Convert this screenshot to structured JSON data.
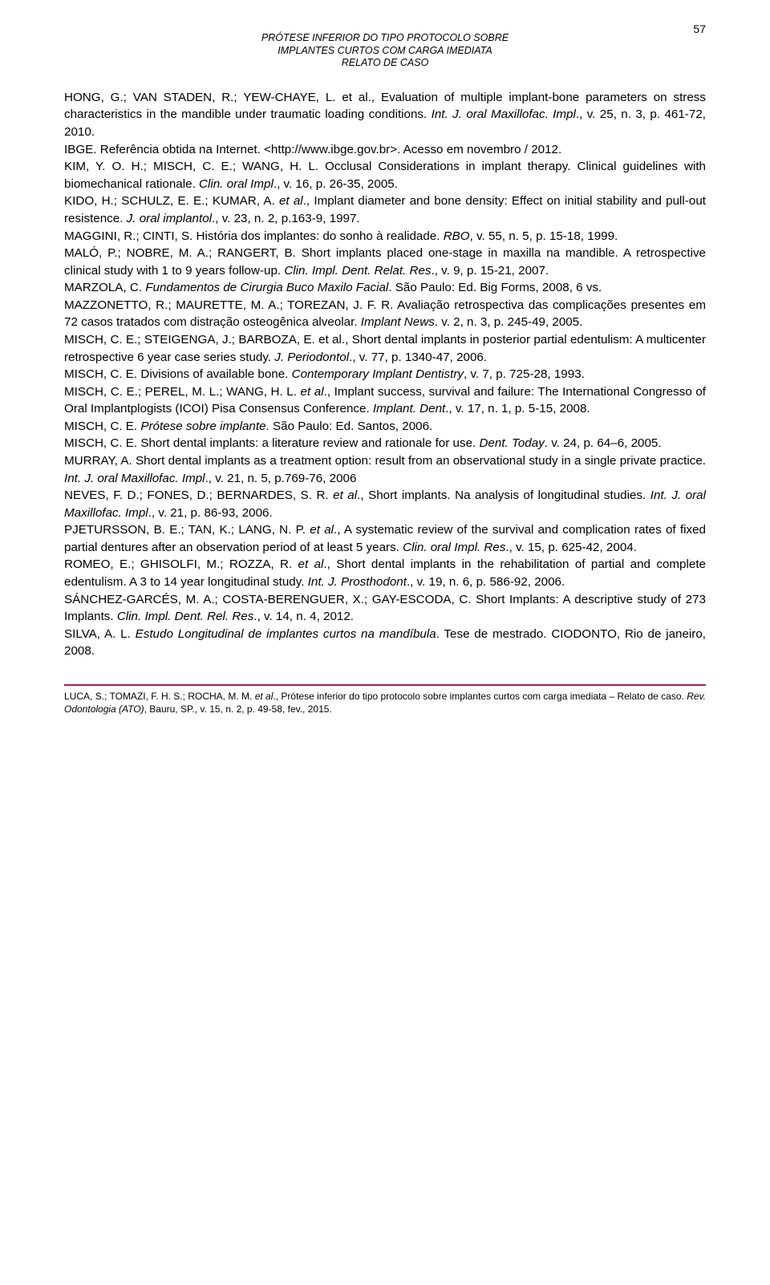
{
  "page_number": "57",
  "header": {
    "line1": "PRÓTESE INFERIOR DO TIPO PROTOCOLO SOBRE",
    "line2": "IMPLANTES CURTOS COM CARGA IMEDIATA",
    "line3": "RELATO DE CASO"
  },
  "refs": {
    "r1a": "HONG, G.; VAN STADEN, R.; YEW-CHAYE, L. et al., Evaluation of multiple implant-bone parameters on stress characteristics in the mandible under traumatic loading conditions. ",
    "r1i": "Int. J. oral Maxillofac. Impl",
    "r1b": "., v. 25, n. 3, p. 461-72, 2010.",
    "r2a": "IBGE. Referência obtida na Internet. <http://www.ibge.gov.br>. Acesso em novembro / 2012.",
    "r3a": "KIM, Y. O. H.; MISCH, C. E.; WANG, H. L. Occlusal Considerations in implant therapy. Clinical guidelines with biomechanical rationale. ",
    "r3i": "Clin. oral Impl",
    "r3b": "., v. 16, p. 26-35, 2005.",
    "r4a": "KIDO, H.; SCHULZ, E. E.; KUMAR, A. ",
    "r4i1": "et al",
    "r4b": "., Implant diameter and bone density: Effect on initial stability and pull-out resistence. ",
    "r4i2": "J. oral implantol",
    "r4c": "., v. 23, n. 2, p.163-9, 1997.",
    "r5a": "MAGGINI, R.; CINTI, S. História dos implantes: do sonho à realidade. ",
    "r5i": "RBO",
    "r5b": ", v. 55, n. 5, p. 15-18, 1999.",
    "r6a": "MALÓ, P.; NOBRE, M. A.; RANGERT, B. Short implants placed one-stage in maxilla na mandible. A retrospective clinical study with 1 to 9 years follow-up. ",
    "r6i": "Clin. Impl. Dent. Relat. Res",
    "r6b": "., v. 9, p. 15-21, 2007.",
    "r7a": "MARZOLA, C. ",
    "r7i": "Fundamentos de Cirurgia Buco Maxilo Facial",
    "r7b": ". São Paulo: Ed. Big Forms, 2008, 6 vs.",
    "r8a": "MAZZONETTO, R.; MAURETTE, M. A.; TOREZAN, J. F. R. Avaliação retrospectiva das complicações presentes em 72 casos tratados com distração osteogênica alveolar. ",
    "r8i": "Implant News",
    "r8b": ". v. 2, n. 3, p. 245-49, 2005.",
    "r9a": "MISCH, C. E.; STEIGENGA, J.; BARBOZA, E. et al., Short dental implants in posterior partial edentulism: A multicenter retrospective 6 year case series study. ",
    "r9i": "J. Periodontol",
    "r9b": "., v. 77, p. 1340-47, 2006.",
    "r10a": "MISCH, C. E. Divisions of available bone. ",
    "r10i": "Contemporary Implant Dentistry",
    "r10b": ", v. 7, p. 725-28, 1993.",
    "r11a": "MISCH, C. E.; PEREL, M. L.; WANG, H. L. ",
    "r11i1": "et al",
    "r11b": "., Implant success, survival and failure: The International Congresso of Oral Implantplogists (ICOI) Pisa Consensus Conference. ",
    "r11i2": "Implant. Dent",
    "r11c": "., v. 17, n. 1, p. 5-15, 2008.",
    "r12a": "MISCH, C. E. ",
    "r12i": "Prótese sobre implante",
    "r12b": ". São Paulo: Ed. Santos, 2006.",
    "r13a": "MISCH, C. E. Short dental implants: a literature review and rationale for use. ",
    "r13i": "Dent. Today",
    "r13b": ". v. 24, p. 64–6, 2005.",
    "r14a": "MURRAY, A. Short dental implants as a treatment option: result from an observational study in a single private practice. ",
    "r14i": "Int. J. oral Maxillofac. Impl",
    "r14b": "., v. 21, n. 5, p.769-76, 2006",
    "r15a": "NEVES, F. D.; FONES, D.; BERNARDES, S. R. ",
    "r15i1": "et al",
    "r15b": "., Short implants. Na analysis of longitudinal studies. ",
    "r15i2": "Int. J. oral Maxillofac. Impl",
    "r15c": "., v. 21, p. 86-93, 2006.",
    "r16a": "PJETURSSON, B. E.; TAN, K.; LANG, N. P. ",
    "r16i1": "et al",
    "r16b": "., A systematic review of the survival and complication rates of fixed partial dentures after an observation period of at least 5 years. ",
    "r16i2": "Clin. oral Impl. Res",
    "r16c": "., v. 15, p. 625-42, 2004.",
    "r17a": "ROMEO, E.; GHISOLFI, M.; ROZZA, R. ",
    "r17i1": "et al",
    "r17b": "., Short dental implants in the rehabilitation of partial and complete edentulism. A 3 to 14 year longitudinal study. ",
    "r17i2": "Int. J. Prosthodont",
    "r17c": "., v. 19, n. 6, p. 586-92, 2006.",
    "r18a": "SÁNCHEZ-GARCÉS, M. A.; COSTA-BERENGUER, X.; GAY-ESCODA, C. Short Implants: A descriptive study of 273 Implants. ",
    "r18i": "Clin. Impl. Dent. Rel. Res",
    "r18b": "., v. 14, n. 4, 2012.",
    "r19a": "SILVA, A. L. ",
    "r19i": "Estudo Longitudinal de implantes curtos na mandíbula",
    "r19b": ". Tese de mestrado. CIODONTO, Rio de janeiro, 2008."
  },
  "footer": {
    "f1": "LUCA, S.; TOMAZI, F. H. S.; ROCHA, M. M. ",
    "fi1": "et al",
    "f2": "., Prótese inferior do tipo protocolo sobre implantes curtos com carga imediata – Relato de caso. ",
    "fi2": "Rev. Odontologia (ATO)",
    "f3": ", Bauru, SP., v. 15, n. 2, p. 49-58, fev., 2015."
  },
  "colors": {
    "rule": "#a8244f",
    "text": "#000000",
    "background": "#ffffff"
  },
  "typography": {
    "body_fontsize": 15.2,
    "header_fontsize": 12.5,
    "footer_fontsize": 12,
    "page_number_fontsize": 14
  }
}
